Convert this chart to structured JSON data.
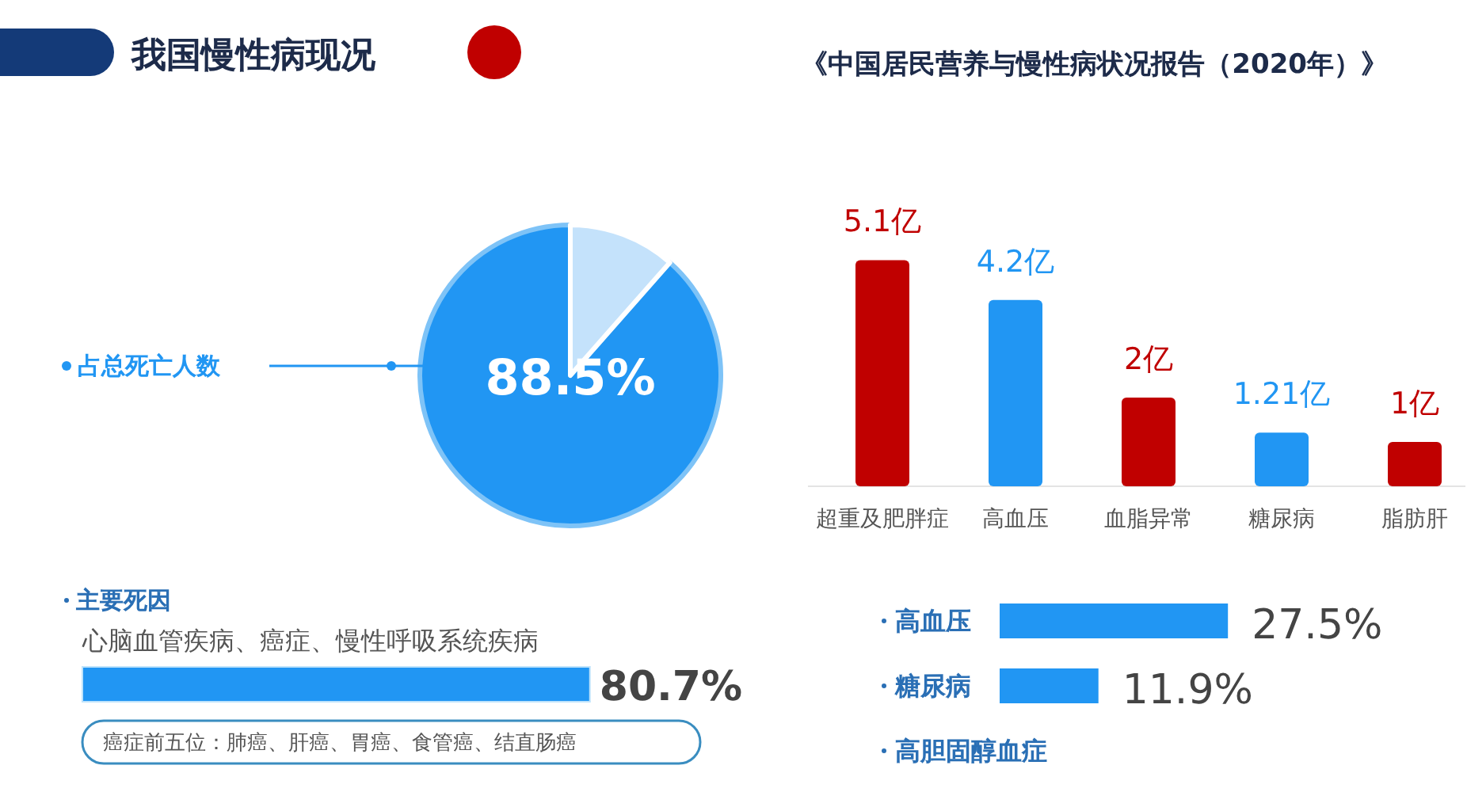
{
  "chart_data": [
    {
      "type": "other",
      "title": "我国慢性病现况",
      "annotations": [
        "《中国居民营养与慢性病状况报告（2020年）》"
      ]
    },
    {
      "type": "pie",
      "categories": [
        "占总死亡人数",
        null
      ],
      "values": [
        88.5,
        11.5
      ],
      "colors": [
        "#2196f3",
        "#c4e2fb"
      ],
      "value_labels": [
        "88.5%",
        null
      ]
    },
    {
      "type": "bar",
      "categories": [
        "超重及肥胖症",
        "高血压",
        "血脂异常",
        "糖尿病",
        "脂肪肝"
      ],
      "values": [
        5.1,
        4.2,
        2,
        1.21,
        1
      ],
      "colors": [
        "#c00000",
        "#2196f3",
        "#c00000",
        "#2196f3",
        "#c00000"
      ],
      "value_labels": [
        "5.1亿",
        "4.2亿",
        "2亿",
        "1.21亿",
        "1亿"
      ]
    },
    {
      "type": "bar",
      "orientation": "horizontal",
      "title": "主要死因",
      "categories": [
        "心脑血管疾病、癌症、慢性呼吸系统疾病"
      ],
      "values": [
        80.7
      ],
      "colors": [
        "#2196f3"
      ],
      "value_labels": [
        "80.7%"
      ],
      "annotations": [
        "癌症前五位：肺癌、肝癌、胃癌、食管癌、结直肠癌"
      ]
    },
    {
      "type": "bar",
      "orientation": "horizontal",
      "categories": [
        "高血压",
        "糖尿病",
        "高胆固醇血症"
      ],
      "values": [
        27.5,
        11.9,
        null
      ],
      "color": "#2196f3",
      "value_labels": [
        "27.5%",
        "11.9%",
        null
      ]
    }
  ]
}
